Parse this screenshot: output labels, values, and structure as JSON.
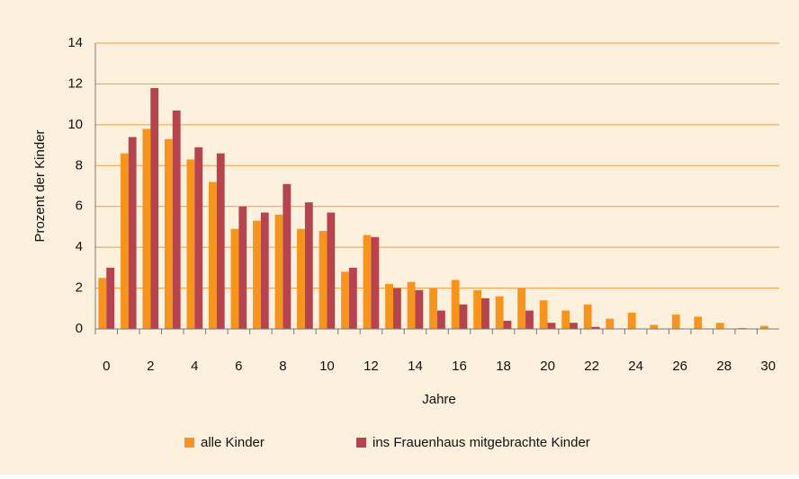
{
  "chart_data": {
    "type": "bar",
    "x_label": "Jahre",
    "y_label": "Prozent der Kinder",
    "categories": [
      "0",
      null,
      "2",
      null,
      "4",
      null,
      "6",
      null,
      "8",
      null,
      "10",
      null,
      "12",
      null,
      "14",
      null,
      "16",
      null,
      "18",
      null,
      "20",
      null,
      "22",
      null,
      "24",
      null,
      "26",
      null,
      "28",
      null,
      "30"
    ],
    "series": [
      {
        "name": "alle Kinder",
        "color": "#f7941d",
        "values": [
          2.5,
          8.6,
          9.8,
          9.3,
          8.3,
          7.2,
          4.9,
          5.3,
          5.6,
          4.9,
          4.8,
          2.8,
          4.6,
          2.2,
          2.3,
          2.0,
          2.4,
          1.9,
          1.6,
          2.0,
          1.4,
          0.9,
          1.2,
          0.5,
          0.8,
          0.2,
          0.7,
          0.6,
          0.3,
          0.05,
          0.15
        ]
      },
      {
        "name": "ins Frauenhaus mitgebrachte Kinder",
        "color": "#b5444f",
        "values": [
          3.0,
          9.4,
          11.8,
          10.7,
          8.9,
          8.6,
          6.0,
          5.7,
          7.1,
          6.2,
          5.7,
          3.0,
          4.5,
          2.0,
          1.9,
          0.9,
          1.2,
          1.5,
          0.4,
          0.9,
          0.3,
          0.3,
          0.1,
          0,
          0,
          0,
          0,
          0,
          0,
          0,
          0
        ]
      }
    ],
    "ylim": [
      0,
      14
    ],
    "yticks": [
      0,
      2,
      4,
      6,
      8,
      10,
      12,
      14
    ],
    "grid": true,
    "legend": "bottom"
  }
}
